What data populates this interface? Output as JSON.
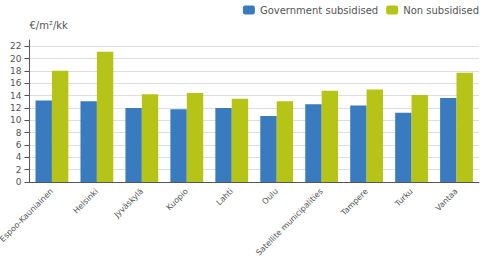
{
  "chart_data": {
    "type": "bar",
    "categories": [
      "Espoo-Kauniainen",
      "Helsinki",
      "Jyväskylä",
      "Kuopio",
      "Lahti",
      "Oulu",
      "Satellite municipalities",
      "Tampere",
      "Turku",
      "Vantaa"
    ],
    "series": [
      {
        "name": "Government subsidised",
        "color": "#3a7bbf",
        "values": [
          13.2,
          13.1,
          12.0,
          11.8,
          12.0,
          10.7,
          12.6,
          12.4,
          11.2,
          13.6
        ]
      },
      {
        "name": "Non subsidised",
        "color": "#b5c417",
        "values": [
          18.0,
          21.1,
          14.2,
          14.4,
          13.5,
          13.1,
          14.8,
          15.0,
          14.1,
          17.7
        ]
      }
    ],
    "ylabel": "€/m²/kk",
    "ylim": [
      0,
      23
    ],
    "yticks": [
      0,
      2,
      4,
      6,
      8,
      10,
      12,
      14,
      16,
      18,
      20,
      22
    ],
    "grid": true,
    "legend": "upper right"
  }
}
